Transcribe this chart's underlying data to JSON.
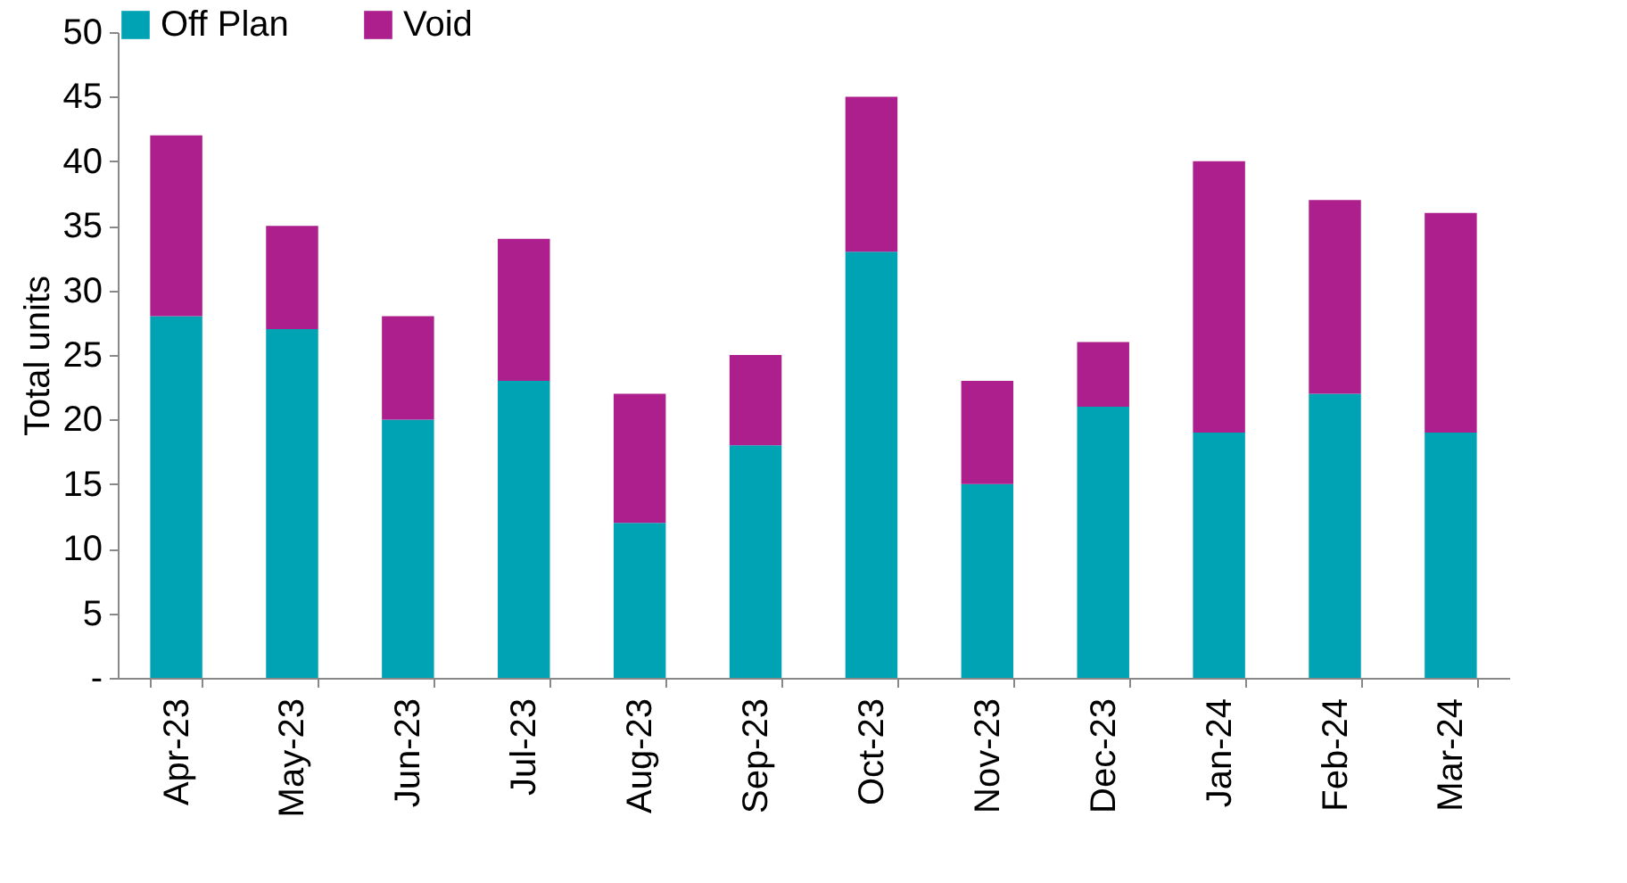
{
  "chart_data": {
    "type": "bar",
    "stacked": true,
    "ylabel": "Total units",
    "categories": [
      "Apr-23",
      "May-23",
      "Jun-23",
      "Jul-23",
      "Aug-23",
      "Sep-23",
      "Oct-23",
      "Nov-23",
      "Dec-23",
      "Jan-24",
      "Feb-24",
      "Mar-24"
    ],
    "series": [
      {
        "name": "Off Plan",
        "color": "#00a3b4",
        "values": [
          28,
          27,
          20,
          23,
          12,
          18,
          33,
          15,
          21,
          19,
          22,
          19
        ]
      },
      {
        "name": "Void",
        "color": "#ac1f8c",
        "values": [
          14,
          8,
          8,
          11,
          10,
          7,
          12,
          8,
          5,
          21,
          15,
          17
        ]
      }
    ],
    "ylim": [
      0,
      50
    ],
    "yticks": [
      {
        "value": 0,
        "label": "-"
      },
      5,
      10,
      15,
      20,
      25,
      30,
      35,
      40,
      45,
      50
    ],
    "grid": false,
    "legend": "top"
  }
}
